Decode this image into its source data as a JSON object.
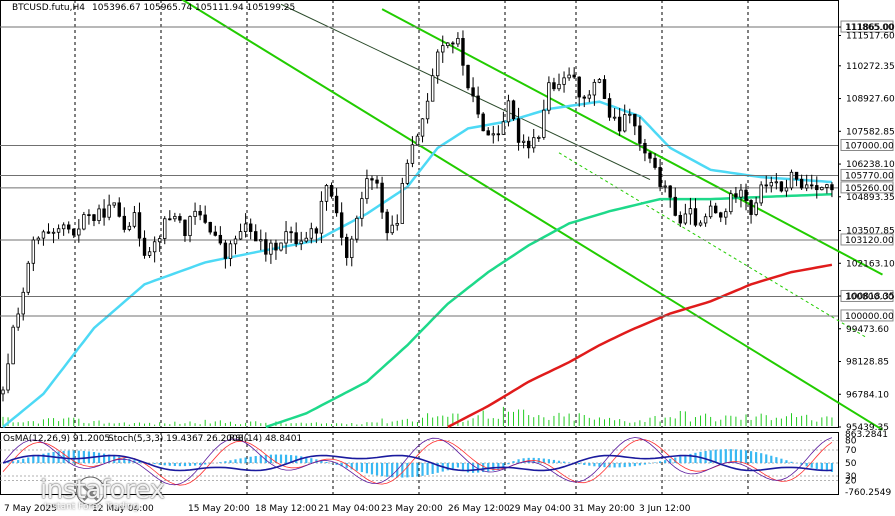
{
  "header": {
    "symbol": "BTCUSD.futu,H4",
    "ohlc": "105396.67 105965.74 105111.94 105199.25"
  },
  "indicator_header": {
    "osma": "OsMA(12,26,9) 91.2005",
    "stoch": "Stoch(5,3,3) 19.4367 26.2008",
    "rsi": "RSI(14) 48.8401"
  },
  "watermark": {
    "brand": "instaforex",
    "tagline": "Instant Forex Trading"
  },
  "colors": {
    "ema_fast": "#4dd9f5",
    "ema_mid": "#1ed98a",
    "ema_slow": "#e01b1b",
    "channel": "#22cc00",
    "candle": "#000000",
    "volume": "#22cc22",
    "osma_hist": "#38b8f2",
    "stoch_main": "#1a1a9e",
    "stoch_signal": "#ff3030",
    "rsi_line": "#5b1b9e"
  },
  "chart_data": {
    "type": "line",
    "price_axis": {
      "min": 95439.35,
      "max": 112400,
      "ticks": [
        "111865.00",
        "111517.60",
        "110272.35",
        "108927.60",
        "107582.85",
        "106238.10",
        "104893.35",
        "103507.85",
        "102163.10",
        "100818.35",
        "99473.60",
        "98128.85",
        "96784.10",
        "95439.35"
      ],
      "tick_values": [
        111865,
        111517.6,
        110272.35,
        108927.6,
        107582.85,
        106238.1,
        104893.35,
        103507.85,
        102163.1,
        100818.35,
        99473.6,
        98128.85,
        96784.1,
        95439.35
      ]
    },
    "levels": [
      {
        "label": "111865.00",
        "value": 111865,
        "color": "#707070"
      },
      {
        "label": "107000.00",
        "value": 107000,
        "color": "#707070"
      },
      {
        "label": "105770.00",
        "value": 105770,
        "color": "#707070"
      },
      {
        "label": "105260.00",
        "value": 105260,
        "color": "#707070"
      },
      {
        "label": "103120.00",
        "value": 103120,
        "color": "#707070"
      },
      {
        "label": "100800.00",
        "value": 100800,
        "color": "#707070"
      },
      {
        "label": "100000.00",
        "value": 100000,
        "color": "#707070"
      }
    ],
    "x_labels": [
      "7 May 2025",
      "12 May 04:00",
      "15 May 20:00",
      "18 May 12:00",
      "21 May 04:00",
      "23 May 20:00",
      "26 May 12:00",
      "29 May 04:00",
      "31 May 20:00",
      "3 Jun 12:00"
    ],
    "bar_count": 165,
    "anchors": [
      [
        0,
        96800
      ],
      [
        2,
        99500
      ],
      [
        4,
        101000
      ],
      [
        6,
        103000
      ],
      [
        8,
        103300
      ],
      [
        10,
        103200
      ],
      [
        12,
        103700
      ],
      [
        14,
        103100
      ],
      [
        16,
        104200
      ],
      [
        18,
        104000
      ],
      [
        20,
        104300
      ],
      [
        22,
        104500
      ],
      [
        24,
        103800
      ],
      [
        26,
        104000
      ],
      [
        28,
        102700
      ],
      [
        30,
        103000
      ],
      [
        32,
        103800
      ],
      [
        34,
        104200
      ],
      [
        36,
        103500
      ],
      [
        38,
        104200
      ],
      [
        40,
        103900
      ],
      [
        42,
        103300
      ],
      [
        44,
        102400
      ],
      [
        46,
        103200
      ],
      [
        48,
        103600
      ],
      [
        50,
        103300
      ],
      [
        52,
        102600
      ],
      [
        54,
        102900
      ],
      [
        56,
        103400
      ],
      [
        58,
        103100
      ],
      [
        60,
        103300
      ],
      [
        62,
        103600
      ],
      [
        64,
        105600
      ],
      [
        66,
        104300
      ],
      [
        68,
        102400
      ],
      [
        70,
        103900
      ],
      [
        72,
        105700
      ],
      [
        74,
        105300
      ],
      [
        76,
        103500
      ],
      [
        78,
        103900
      ],
      [
        80,
        106500
      ],
      [
        82,
        107200
      ],
      [
        84,
        109000
      ],
      [
        86,
        111000
      ],
      [
        88,
        111300
      ],
      [
        90,
        111200
      ],
      [
        92,
        109500
      ],
      [
        94,
        108200
      ],
      [
        96,
        107400
      ],
      [
        98,
        107600
      ],
      [
        100,
        108600
      ],
      [
        102,
        107300
      ],
      [
        104,
        107100
      ],
      [
        106,
        107500
      ],
      [
        108,
        109500
      ],
      [
        110,
        109300
      ],
      [
        112,
        110000
      ],
      [
        114,
        109200
      ],
      [
        116,
        109000
      ],
      [
        118,
        109800
      ],
      [
        120,
        108200
      ],
      [
        122,
        107700
      ],
      [
        124,
        108400
      ],
      [
        126,
        107000
      ],
      [
        128,
        106300
      ],
      [
        130,
        105500
      ],
      [
        132,
        104700
      ],
      [
        134,
        103900
      ],
      [
        136,
        104200
      ],
      [
        138,
        103600
      ],
      [
        140,
        104400
      ],
      [
        142,
        104000
      ],
      [
        144,
        104800
      ],
      [
        146,
        105400
      ],
      [
        148,
        104300
      ],
      [
        150,
        105200
      ],
      [
        152,
        105600
      ],
      [
        154,
        105000
      ],
      [
        156,
        105800
      ],
      [
        158,
        105300
      ],
      [
        160,
        105500
      ],
      [
        162,
        105300
      ],
      [
        164,
        105200
      ]
    ],
    "ema_fast_anchors": [
      [
        0,
        95439
      ],
      [
        8,
        96800
      ],
      [
        18,
        99500
      ],
      [
        28,
        101300
      ],
      [
        40,
        102200
      ],
      [
        52,
        102700
      ],
      [
        62,
        103100
      ],
      [
        72,
        104200
      ],
      [
        80,
        105300
      ],
      [
        86,
        106900
      ],
      [
        92,
        107700
      ],
      [
        100,
        108000
      ],
      [
        108,
        108500
      ],
      [
        118,
        108800
      ],
      [
        126,
        108200
      ],
      [
        132,
        106900
      ],
      [
        140,
        106000
      ],
      [
        150,
        105700
      ],
      [
        164,
        105500
      ]
    ],
    "ema_mid_anchors": [
      [
        52,
        95439
      ],
      [
        60,
        96000
      ],
      [
        72,
        97300
      ],
      [
        80,
        98800
      ],
      [
        88,
        100500
      ],
      [
        96,
        101800
      ],
      [
        104,
        102900
      ],
      [
        112,
        103800
      ],
      [
        120,
        104300
      ],
      [
        130,
        104800
      ],
      [
        140,
        104800
      ],
      [
        152,
        104900
      ],
      [
        164,
        105000
      ]
    ],
    "ema_slow_anchors": [
      [
        88,
        95439
      ],
      [
        96,
        96300
      ],
      [
        104,
        97300
      ],
      [
        112,
        98100
      ],
      [
        118,
        98800
      ],
      [
        124,
        99400
      ],
      [
        132,
        100100
      ],
      [
        140,
        100600
      ],
      [
        148,
        101300
      ],
      [
        156,
        101800
      ],
      [
        164,
        102100
      ]
    ],
    "channel": {
      "upper": [
        [
          75,
          112600
        ],
        [
          164,
          102800
        ]
      ],
      "lower": [
        [
          55,
          110500
        ],
        [
          164,
          96600
        ]
      ],
      "mid_dashed": [
        [
          110,
          106700
        ],
        [
          165,
          99400
        ]
      ]
    },
    "volume_peaks": [
      [
        2,
        3
      ],
      [
        10,
        8
      ],
      [
        22,
        4
      ],
      [
        30,
        3
      ],
      [
        40,
        5
      ],
      [
        52,
        4
      ],
      [
        60,
        3
      ],
      [
        67,
        3
      ],
      [
        82,
        9
      ],
      [
        85,
        14
      ],
      [
        91,
        10
      ],
      [
        95,
        15
      ],
      [
        100,
        18
      ],
      [
        106,
        10
      ],
      [
        114,
        12
      ],
      [
        118,
        8
      ],
      [
        126,
        7
      ],
      [
        133,
        14
      ],
      [
        140,
        10
      ],
      [
        150,
        11
      ],
      [
        156,
        17
      ],
      [
        160,
        8
      ]
    ],
    "subwindow": {
      "levels": [
        {
          "label": "863.2841",
          "pos": 0.03
        },
        {
          "label": "80",
          "pos": 0.14
        },
        {
          "label": "70",
          "pos": 0.29
        },
        {
          "label": "50",
          "pos": 0.5
        },
        {
          "label": "30",
          "pos": 0.71
        },
        {
          "label": "20",
          "pos": 0.78
        },
        {
          "label": "-760.2549",
          "pos": 0.97
        }
      ]
    }
  }
}
